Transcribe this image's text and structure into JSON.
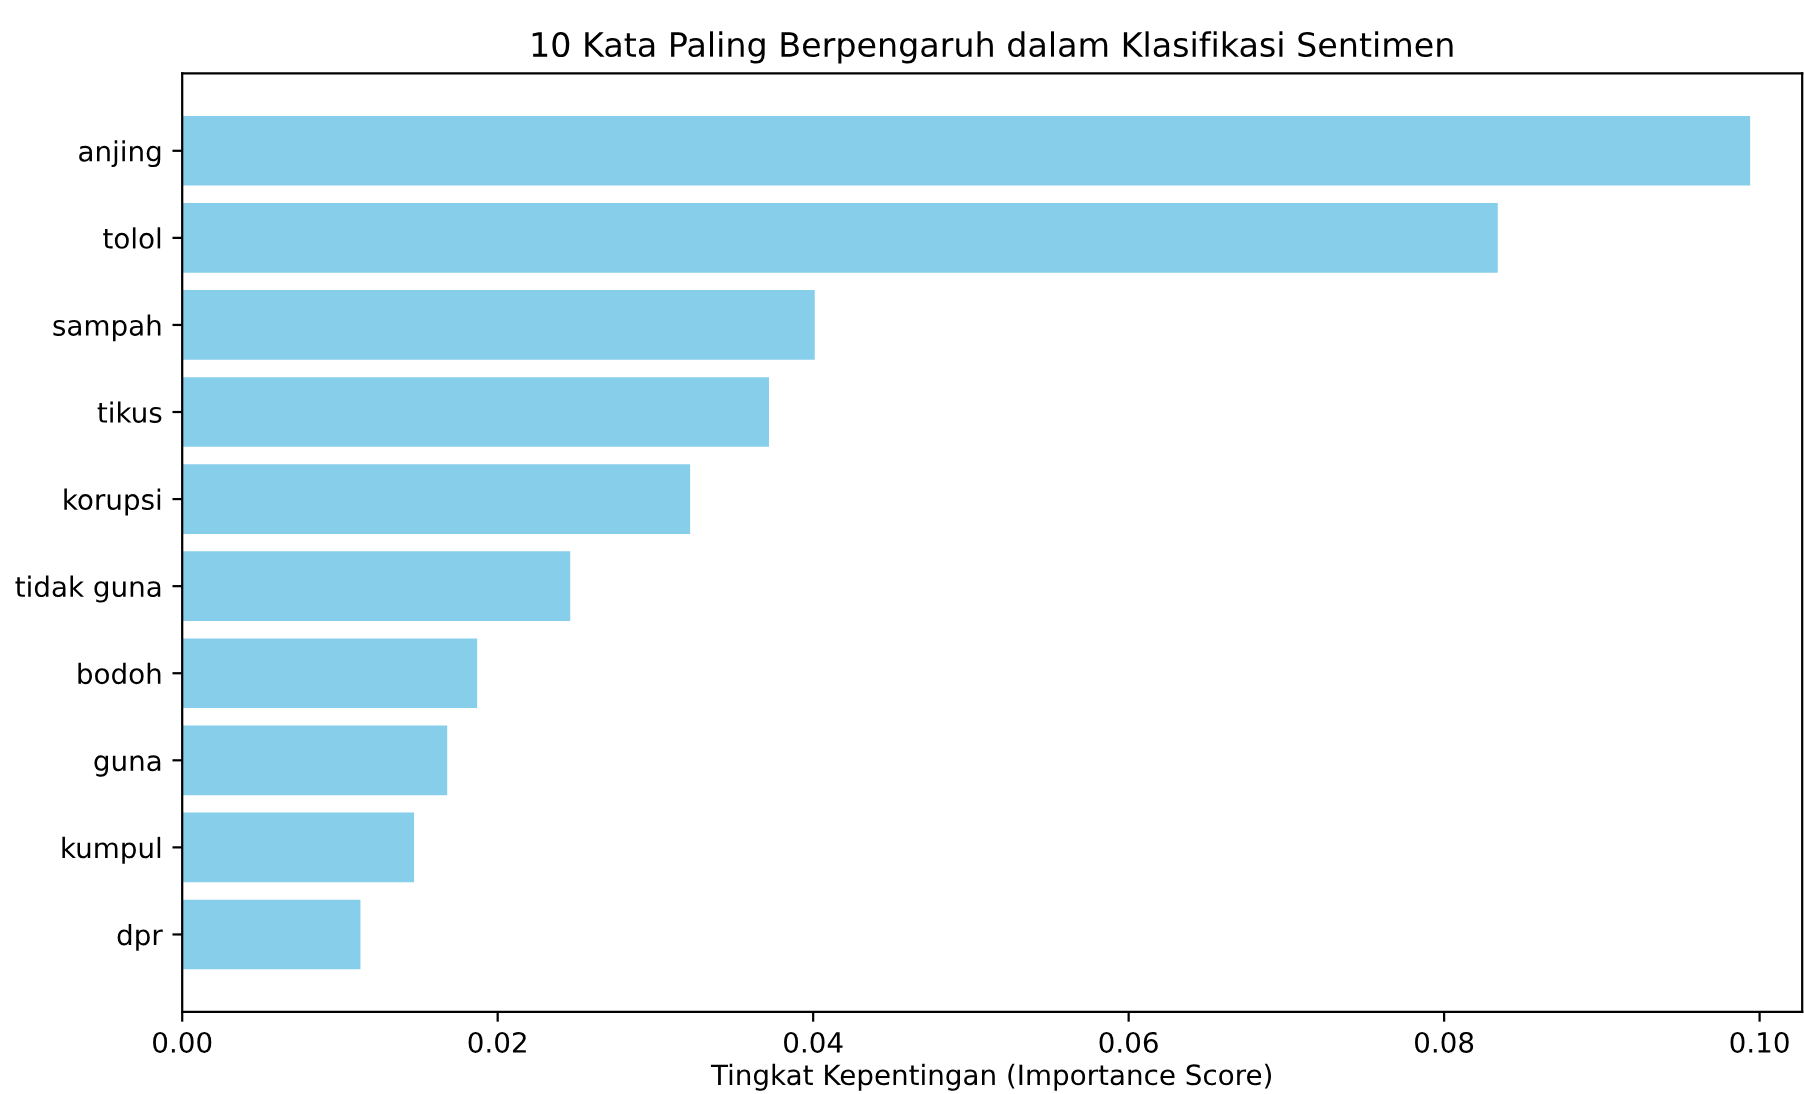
{
  "chart_data": {
    "type": "bar",
    "orientation": "horizontal",
    "title": "10 Kata Paling Berpengaruh dalam Klasifikasi Sentimen",
    "xlabel": "Tingkat Kepentingan (Importance Score)",
    "categories": [
      "anjing",
      "tolol",
      "sampah",
      "tikus",
      "korupsi",
      "tidak guna",
      "bodoh",
      "guna",
      "kumpul",
      "dpr"
    ],
    "values": [
      0.0994,
      0.0834,
      0.0401,
      0.0372,
      0.0322,
      0.0246,
      0.0187,
      0.0168,
      0.0147,
      0.0113
    ],
    "color": "#87ceeb",
    "xlim": [
      0,
      0.1027
    ],
    "xticks": [
      {
        "value": 0,
        "label": "0.00"
      },
      {
        "value": 0.02,
        "label": "0.02"
      },
      {
        "value": 0.04,
        "label": "0.04"
      },
      {
        "value": 0.06,
        "label": "0.06"
      },
      {
        "value": 0.08,
        "label": "0.08"
      },
      {
        "value": 0.1,
        "label": "0.10"
      }
    ],
    "grid": false,
    "legend": false
  }
}
